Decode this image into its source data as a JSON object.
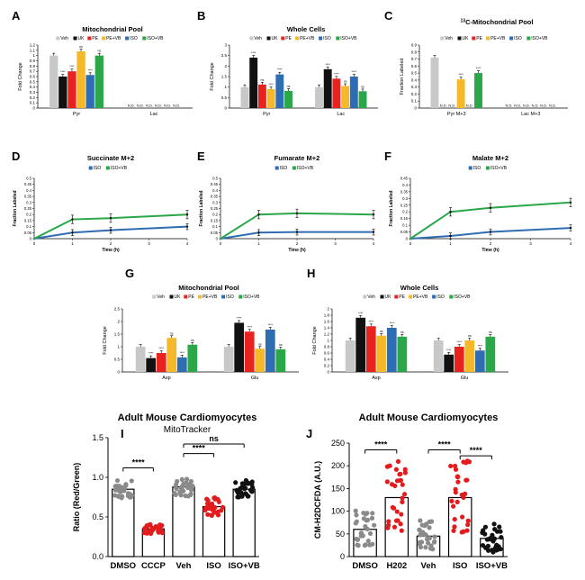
{
  "colors": {
    "veh": "#c8c8c8",
    "uk": "#111111",
    "pe": "#e8231f",
    "pevb": "#f5b828",
    "iso": "#2f6db3",
    "isovb": "#2aa748",
    "grey": "#8a8a8a",
    "red": "#e41a1c"
  },
  "panel_letters": [
    "A",
    "B",
    "C",
    "D",
    "E",
    "F",
    "G",
    "H",
    "I",
    "J"
  ],
  "chart_data": [
    {
      "id": "A",
      "type": "bar",
      "title": "Mitochondrial Pool",
      "ylabel": "Fold Change",
      "ylim": [
        0,
        1.2
      ],
      "yticks": [
        "0",
        "0.1",
        "0.2",
        "0.3",
        "0.4",
        "0.5",
        "0.6",
        "0.7",
        "0.8",
        "0.9",
        "1",
        "1.1",
        "1.2"
      ],
      "legend": [
        "Veh",
        "UK",
        "PE",
        "PE+VB",
        "ISO",
        "ISO+VB"
      ],
      "groups": [
        {
          "label": "Pyr",
          "values": [
            1,
            0.6,
            0.7,
            1.08,
            0.63,
            1.0
          ],
          "sig": [
            "",
            "****",
            "****",
            "ns",
            "****",
            "ns"
          ]
        },
        {
          "label": "Lac",
          "values": [
            0,
            0,
            0,
            0,
            0,
            0
          ],
          "nd": [
            "N.D.",
            "N.D.",
            "N.D.",
            "N.D.",
            "N.D.",
            "N.D."
          ]
        }
      ]
    },
    {
      "id": "B",
      "type": "bar",
      "title": "Whole Cells",
      "ylabel": "Fold Change",
      "ylim": [
        0,
        3
      ],
      "yticks": [
        "0",
        "0.5",
        "1",
        "1.5",
        "2",
        "2.5",
        "3"
      ],
      "legend": [
        "Veh",
        "UK",
        "PE",
        "PE+VB",
        "ISO",
        "ISO+VB"
      ],
      "groups": [
        {
          "label": "Pyr",
          "values": [
            1,
            2.4,
            1.12,
            0.9,
            1.6,
            0.82
          ],
          "sig": [
            "",
            "****",
            "ns",
            "****",
            "****",
            "ns"
          ]
        },
        {
          "label": "Lac",
          "values": [
            1,
            1.85,
            1.4,
            1.05,
            1.5,
            0.8
          ],
          "sig": [
            "",
            "****",
            "****",
            "ns",
            "****",
            "ns"
          ]
        }
      ]
    },
    {
      "id": "C",
      "type": "bar",
      "title": "13C-Mitochondrial Pool",
      "title_sup": "13",
      "title_rest": "C-Mitochondrial Pool",
      "ylabel": "Fraction Labeled",
      "ylim": [
        0,
        0.9
      ],
      "yticks": [
        "0",
        "0.1",
        "0.2",
        "0.3",
        "0.4",
        "0.5",
        "0.6",
        "0.7",
        "0.8",
        "0.9"
      ],
      "legend": [
        "Veh",
        "UK",
        "PE",
        "PE+VB",
        "ISO",
        "ISO+VB"
      ],
      "groups": [
        {
          "label": "Pyr M+3",
          "values": [
            0.72,
            0,
            0,
            0.41,
            0,
            0.5
          ],
          "sig": [
            "",
            "",
            "",
            "****",
            "",
            "****"
          ],
          "nd": [
            "",
            "N.D.",
            "N.D.",
            "",
            "N.D.",
            ""
          ]
        },
        {
          "label": "Lac M+3",
          "values": [
            0,
            0,
            0,
            0,
            0,
            0
          ],
          "nd": [
            "N.D.",
            "N.D.",
            "N.D.",
            "N.D.",
            "N.D.",
            "N.D."
          ]
        }
      ]
    },
    {
      "id": "D",
      "type": "line",
      "title": "Succinate M+2",
      "xlabel": "Time (h)",
      "ylabel": "Fraction Labeled",
      "ylim": [
        0,
        0.5
      ],
      "xlim": [
        0,
        4
      ],
      "xticks": [
        "0",
        "1",
        "2",
        "3",
        "4"
      ],
      "yticks": [
        "0",
        "0.05",
        "0.1",
        "0.15",
        "0.2",
        "0.25",
        "0.3",
        "0.35",
        "0.4",
        "0.45",
        "0.5"
      ],
      "legend": [
        "ISO",
        "ISO+VB"
      ],
      "x": [
        0,
        1,
        2,
        4
      ],
      "series": [
        {
          "name": "ISO",
          "values": [
            0,
            0.05,
            0.07,
            0.1
          ]
        },
        {
          "name": "ISO+VB",
          "values": [
            0,
            0.16,
            0.17,
            0.2
          ]
        }
      ]
    },
    {
      "id": "E",
      "type": "line",
      "title": "Fumarate M+2",
      "xlabel": "Time (h)",
      "ylabel": "Fraction Labeled",
      "ylim": [
        0,
        0.5
      ],
      "xlim": [
        0,
        4
      ],
      "xticks": [
        "0",
        "1",
        "2",
        "3",
        "4"
      ],
      "yticks": [
        "0",
        "0.05",
        "0.1",
        "0.15",
        "0.2",
        "0.25",
        "0.3",
        "0.35",
        "0.4",
        "0.45",
        "0.5"
      ],
      "legend": [
        "ISO",
        "ISO+VB"
      ],
      "x": [
        0,
        1,
        2,
        4
      ],
      "series": [
        {
          "name": "ISO",
          "values": [
            0,
            0.05,
            0.055,
            0.055
          ]
        },
        {
          "name": "ISO+VB",
          "values": [
            0,
            0.2,
            0.21,
            0.2
          ]
        }
      ]
    },
    {
      "id": "F",
      "type": "line",
      "title": "Malate M+2",
      "xlabel": "Time (h)",
      "ylabel": "Fraction Labeled",
      "ylim": [
        0,
        0.45
      ],
      "xlim": [
        0,
        4
      ],
      "xticks": [
        "0",
        "1",
        "2",
        "3",
        "4"
      ],
      "yticks": [
        "0",
        "0.05",
        "0.1",
        "0.15",
        "0.2",
        "0.25",
        "0.3",
        "0.35",
        "0.4",
        "0.45"
      ],
      "legend": [
        "ISO",
        "ISO+VB"
      ],
      "x": [
        0,
        1,
        2,
        4
      ],
      "series": [
        {
          "name": "ISO",
          "values": [
            0,
            0.02,
            0.05,
            0.08
          ]
        },
        {
          "name": "ISO+VB",
          "values": [
            0,
            0.2,
            0.23,
            0.27
          ]
        }
      ]
    },
    {
      "id": "G",
      "type": "bar",
      "title": "Mitochondrial Pool",
      "ylabel": "Fold Change",
      "ylim": [
        0,
        2.5
      ],
      "yticks": [
        "0",
        "0.5",
        "1",
        "1.5",
        "2",
        "2.5"
      ],
      "legend": [
        "Veh",
        "UK",
        "PE",
        "PE+VB",
        "ISO",
        "ISO+VB"
      ],
      "groups": [
        {
          "label": "Asp",
          "values": [
            1,
            0.55,
            0.75,
            1.35,
            0.58,
            1.08
          ],
          "sig": [
            "",
            "****",
            "****",
            "ns",
            "****",
            "ns"
          ]
        },
        {
          "label": "Glu",
          "values": [
            1,
            1.95,
            1.6,
            0.92,
            1.68,
            0.9
          ],
          "sig": [
            "",
            "****",
            "****",
            "ns",
            "****",
            "ns"
          ]
        }
      ]
    },
    {
      "id": "H",
      "type": "bar",
      "title": "Whole Cells",
      "ylabel": "Fold Change",
      "ylim": [
        0,
        2
      ],
      "yticks": [
        "0",
        "0.2",
        "0.4",
        "0.6",
        "0.8",
        "1",
        "1.2",
        "1.4",
        "1.6",
        "1.8",
        "2"
      ],
      "legend": [
        "Veh",
        "UK",
        "PE",
        "PE+VB",
        "ISO",
        "ISO+VB"
      ],
      "groups": [
        {
          "label": "Asp",
          "values": [
            1,
            1.72,
            1.45,
            1.15,
            1.4,
            1.12
          ],
          "sig": [
            "",
            "****",
            "****",
            "ns",
            "****",
            "ns"
          ]
        },
        {
          "label": "Glu",
          "values": [
            1,
            0.55,
            0.8,
            1.0,
            0.68,
            1.12
          ],
          "sig": [
            "",
            "****",
            "****",
            "ns",
            "****",
            "ns"
          ]
        }
      ]
    },
    {
      "id": "I",
      "type": "scatter",
      "title": "Adult Mouse Cardiomyocytes",
      "subtitle": "MitoTracker",
      "ylabel": "Ratio (Red/Green)",
      "ylim": [
        0,
        1.5
      ],
      "yticks": [
        "0.0",
        "0.5",
        "1.0",
        "1.5"
      ],
      "categories": [
        "DMSO",
        "CCCP",
        "Veh",
        "ISO",
        "ISO+VB"
      ],
      "means": [
        0.85,
        0.35,
        0.88,
        0.63,
        0.85
      ],
      "brackets": [
        {
          "from": 0,
          "to": 1,
          "label": "****"
        },
        {
          "from": 2,
          "to": 3,
          "label": "****"
        },
        {
          "from": 2,
          "to": 4,
          "label": "ns"
        }
      ]
    },
    {
      "id": "J",
      "type": "scatter",
      "title": "Adult Mouse Cardiomyocytes",
      "ylabel": "CM-H2DCFDA (A.U.)",
      "ylim": [
        0,
        250
      ],
      "yticks": [
        "0",
        "50",
        "100",
        "150",
        "200",
        "250"
      ],
      "categories": [
        "DMSO",
        "H202",
        "Veh",
        "ISO",
        "ISO+VB"
      ],
      "means": [
        60,
        130,
        45,
        130,
        40
      ],
      "brackets": [
        {
          "from": 0,
          "to": 1,
          "label": "****"
        },
        {
          "from": 2,
          "to": 3,
          "label": "****"
        },
        {
          "from": 3,
          "to": 4,
          "label": "****"
        }
      ]
    }
  ]
}
